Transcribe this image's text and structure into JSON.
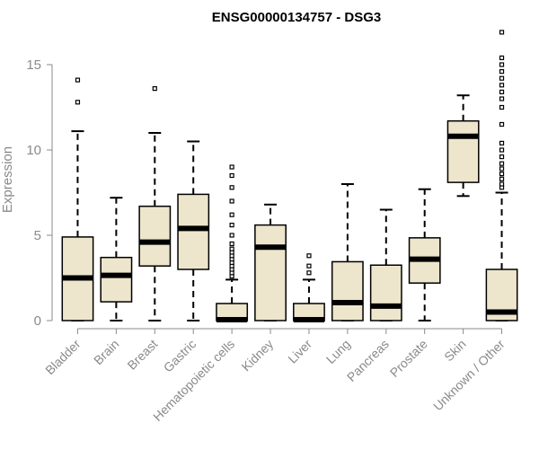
{
  "chart_data": {
    "type": "boxplot",
    "title": "ENSG00000134757 - DSG3",
    "ylabel": "Expression",
    "xlabel": "",
    "ylim": [
      0,
      17
    ],
    "yticks": [
      0,
      5,
      10,
      15
    ],
    "box_fill": "#ede6cc",
    "box_stroke": "#000000",
    "median_color": "#000000",
    "axis_text_color": "#8a8a8a",
    "categories": [
      {
        "label": "Bladder",
        "whisker_low": 0,
        "q1": 0,
        "median": 2.5,
        "q3": 4.9,
        "whisker_high": 11.1,
        "outliers": [
          12.8,
          14.1
        ]
      },
      {
        "label": "Brain",
        "whisker_low": 0,
        "q1": 1.1,
        "median": 2.65,
        "q3": 3.7,
        "whisker_high": 7.2,
        "outliers": []
      },
      {
        "label": "Breast",
        "whisker_low": 0,
        "q1": 3.2,
        "median": 4.6,
        "q3": 6.7,
        "whisker_high": 11.0,
        "outliers": [
          13.6
        ]
      },
      {
        "label": "Gastric",
        "whisker_low": 0,
        "q1": 3.0,
        "median": 5.4,
        "q3": 7.4,
        "whisker_high": 10.5,
        "outliers": []
      },
      {
        "label": "Hematopoietic cells",
        "whisker_low": 0,
        "q1": 0,
        "median": 0.05,
        "q3": 1.0,
        "whisker_high": 2.4,
        "outliers": [
          2.6,
          2.8,
          3.0,
          3.2,
          3.4,
          3.6,
          3.8,
          4.0,
          4.2,
          4.5,
          5.0,
          5.6,
          6.2,
          7.0,
          7.8,
          8.5,
          9.0
        ]
      },
      {
        "label": "Kidney",
        "whisker_low": 0,
        "q1": 0,
        "median": 4.3,
        "q3": 5.6,
        "whisker_high": 6.8,
        "outliers": []
      },
      {
        "label": "Liver",
        "whisker_low": 0,
        "q1": 0,
        "median": 0.05,
        "q3": 1.0,
        "whisker_high": 2.4,
        "outliers": [
          2.8,
          3.2,
          3.8
        ]
      },
      {
        "label": "Lung",
        "whisker_low": 0,
        "q1": 0,
        "median": 1.05,
        "q3": 3.45,
        "whisker_high": 8.0,
        "outliers": []
      },
      {
        "label": "Pancreas",
        "whisker_low": 0,
        "q1": 0,
        "median": 0.85,
        "q3": 3.25,
        "whisker_high": 6.5,
        "outliers": []
      },
      {
        "label": "Prostate",
        "whisker_low": 0,
        "q1": 2.2,
        "median": 3.6,
        "q3": 4.85,
        "whisker_high": 7.7,
        "outliers": []
      },
      {
        "label": "Skin",
        "whisker_low": 7.3,
        "q1": 8.1,
        "median": 10.8,
        "q3": 11.7,
        "whisker_high": 13.2,
        "outliers": []
      },
      {
        "label": "Unknown / Other",
        "whisker_low": 0,
        "q1": 0,
        "median": 0.5,
        "q3": 3.0,
        "whisker_high": 7.5,
        "outliers": [
          7.8,
          8.0,
          8.3,
          8.6,
          8.9,
          9.2,
          9.6,
          10.0,
          10.4,
          11.5,
          12.5,
          13.0,
          13.4,
          13.8,
          14.2,
          14.6,
          15.0,
          15.4,
          16.9
        ]
      }
    ]
  }
}
